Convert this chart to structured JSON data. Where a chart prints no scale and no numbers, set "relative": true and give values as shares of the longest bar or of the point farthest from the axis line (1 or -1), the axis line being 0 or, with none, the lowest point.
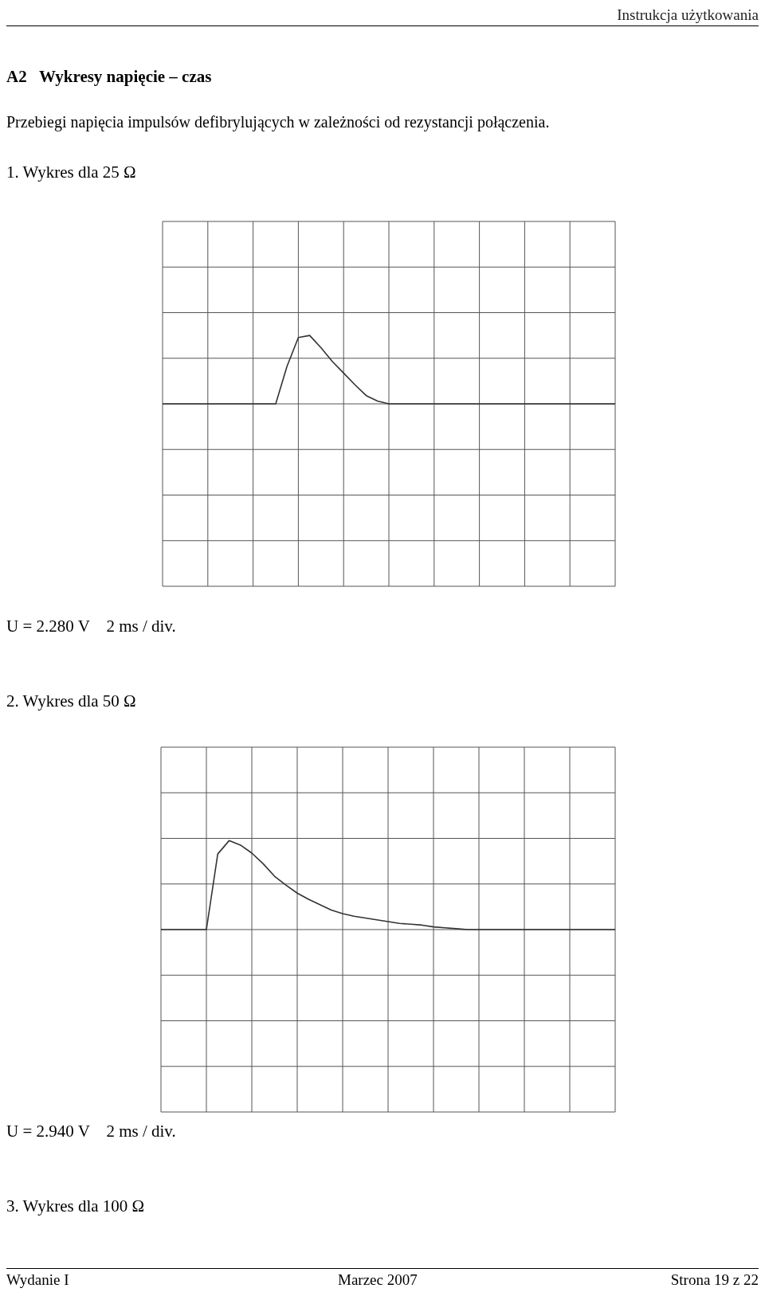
{
  "chart_data": [
    {
      "type": "line",
      "relative": true,
      "grid": true,
      "legend": false,
      "title": "1. Wykres dla 25 Ω",
      "annotations": [
        "Instrukcja użytkowania",
        "A2   Wykresy napięcie – czas",
        "Przebiegi napięcia impulsów defibrylujących w zależności od rezystancji połączenia.",
        "U = 2.280 V    2 ms / div."
      ],
      "categories": [
        null,
        null,
        null,
        null,
        null,
        null,
        null,
        null,
        null,
        null,
        null,
        null,
        null,
        null,
        null,
        null,
        null,
        null,
        null,
        null,
        null,
        null,
        null,
        null,
        null,
        null,
        null,
        null,
        null,
        null,
        null,
        null,
        null,
        null,
        null,
        null,
        null,
        null,
        null,
        null,
        null
      ],
      "series": [
        {
          "color": "#333333",
          "values": [
            0,
            0,
            0,
            0,
            0,
            0,
            0,
            0,
            0,
            0,
            0,
            0.55,
            0.97,
            1,
            0.82,
            0.62,
            0.45,
            0.28,
            0.12,
            0.04,
            0,
            0,
            0,
            0,
            0,
            0,
            0,
            0,
            0,
            0,
            0,
            0,
            0,
            0,
            0,
            0,
            0,
            0,
            0,
            0,
            0
          ]
        }
      ]
    },
    {
      "type": "line",
      "relative": true,
      "grid": true,
      "legend": false,
      "title": "2. Wykres dla 50 Ω",
      "annotations": [
        "U = 2.940 V    2 ms / div.",
        "3. Wykres dla 100 Ω",
        "Wydanie I",
        "Marzec 2007",
        "Strona 19 z 22"
      ],
      "categories": [
        null,
        null,
        null,
        null,
        null,
        null,
        null,
        null,
        null,
        null,
        null,
        null,
        null,
        null,
        null,
        null,
        null,
        null,
        null,
        null,
        null,
        null,
        null,
        null,
        null,
        null,
        null,
        null,
        null,
        null,
        null,
        null,
        null,
        null,
        null,
        null,
        null,
        null,
        null,
        null,
        null
      ],
      "series": [
        {
          "color": "#333333",
          "values": [
            0,
            0,
            0,
            0,
            0,
            0.85,
            1,
            0.95,
            0.86,
            0.74,
            0.6,
            0.5,
            0.41,
            0.34,
            0.28,
            0.22,
            0.18,
            0.15,
            0.13,
            0.11,
            0.09,
            0.07,
            0.06,
            0.05,
            0.03,
            0.02,
            0.01,
            0,
            0,
            0,
            0,
            0,
            0,
            0,
            0,
            0,
            0,
            0,
            0,
            0,
            0
          ]
        }
      ]
    }
  ]
}
